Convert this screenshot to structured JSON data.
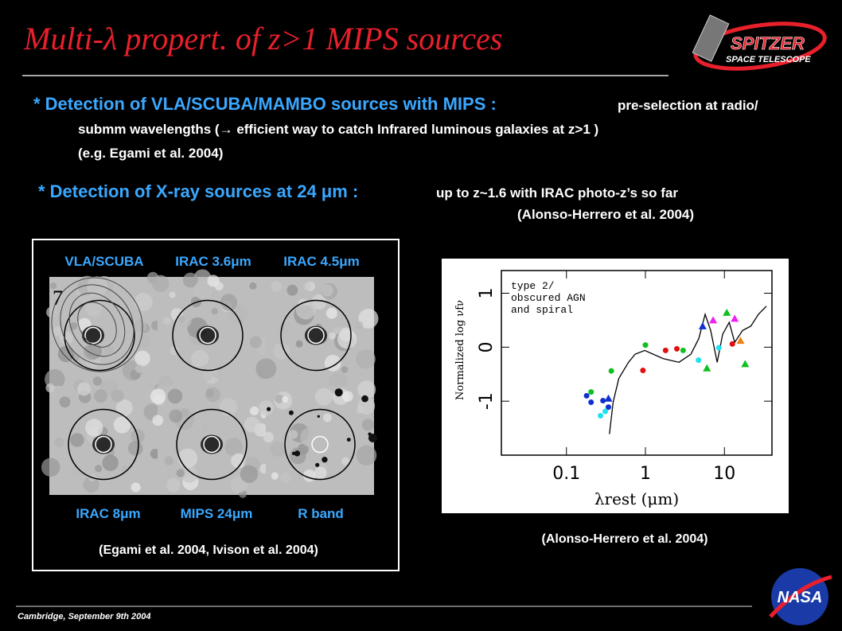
{
  "header": {
    "title": "Multi-λ propert. of z>1 MIPS sources",
    "logo_main": "SPITZER",
    "logo_sub": "SPACE TELESCOPE"
  },
  "bullets": [
    {
      "lead": "* Detection of VLA/SCUBA/MAMBO sources with MIPS :",
      "lines": [
        "pre-selection at radio/",
        "submm wavelengths (→ efficient way to catch Infrared luminous galaxies at z>1 )",
        "(e.g. Egami et al. 2004)"
      ]
    },
    {
      "lead": "* Detection of X-ray sources at 24 μm :",
      "lines": [
        "up to z~1.6 with IRAC photo-z’s  so far",
        "(Alonso-Herrero et al. 2004)"
      ]
    }
  ],
  "figure_left": {
    "top_labels": [
      "VLA/SCUBA",
      "IRAC 3.6μm",
      "IRAC 4.5μm"
    ],
    "panel_number": "7",
    "bottom_labels": [
      "IRAC 8μm",
      "MIPS 24μm",
      "R band"
    ],
    "caption": "(Egami et al. 2004, Ivison et al. 2004)"
  },
  "chart_data": {
    "type": "scatter",
    "xlog": true,
    "xlim": [
      0.015,
      40
    ],
    "ylim": [
      -2.0,
      1.42
    ],
    "xticks": [
      0.1,
      1,
      10
    ],
    "yticks": [
      -1,
      0,
      1
    ],
    "x_label": "λrest (μm)",
    "y_label": "Normalized log νfν",
    "annotation": [
      "type 2/",
      "obscured AGN",
      "and spiral"
    ],
    "template": {
      "color": "#000000",
      "x": [
        0.35,
        0.39,
        0.46,
        0.61,
        0.74,
        0.98,
        1.67,
        2.66,
        3.76,
        4.74,
        5.7,
        6.7,
        8.1,
        9.5,
        11.5,
        13.5,
        17,
        21.6,
        27,
        34
      ],
      "values": [
        -1.61,
        -1.02,
        -0.58,
        -0.28,
        -0.13,
        -0.06,
        -0.21,
        -0.28,
        -0.13,
        0.16,
        0.61,
        0.31,
        -0.28,
        0.24,
        0.46,
        0.09,
        0.31,
        0.39,
        0.61,
        0.76
      ]
    },
    "series": [
      {
        "color": "#1030d0",
        "marker": "circle",
        "x": [
          0.18,
          0.205,
          0.29,
          0.34
        ],
        "values": [
          -0.9,
          -1.02,
          -0.99,
          -1.11
        ]
      },
      {
        "color": "#10c020",
        "marker": "circle",
        "x": [
          0.205,
          0.37,
          1.0,
          3.0
        ],
        "values": [
          -0.83,
          -0.44,
          0.04,
          -0.06
        ]
      },
      {
        "color": "#20e0f0",
        "marker": "circle",
        "x": [
          0.27,
          0.31,
          4.7,
          8.5
        ],
        "values": [
          -1.27,
          -1.19,
          -0.24,
          -0.01
        ]
      },
      {
        "color": "#e01010",
        "marker": "circle",
        "x": [
          0.93,
          1.8,
          2.5,
          12.6
        ],
        "values": [
          -0.43,
          -0.06,
          -0.03,
          0.06
        ]
      },
      {
        "color": "#f020f0",
        "marker": "triangle",
        "x": [
          7.2,
          13.5
        ],
        "values": [
          0.5,
          0.53
        ]
      },
      {
        "color": "#10c020",
        "marker": "triangle",
        "x": [
          6.0,
          10.7,
          18.3
        ],
        "values": [
          -0.39,
          0.64,
          -0.31
        ]
      },
      {
        "color": "#1030d0",
        "marker": "triangle",
        "x": [
          0.34,
          5.3
        ],
        "values": [
          -0.95,
          0.39
        ]
      },
      {
        "color": "#f08010",
        "marker": "triangle",
        "x": [
          16
        ],
        "values": [
          0.12
        ]
      }
    ]
  },
  "right_caption": "(Alonso-Herrero et al. 2004)",
  "footer": {
    "text": "Cambridge, September 9th 2004",
    "logo": "NASA"
  }
}
